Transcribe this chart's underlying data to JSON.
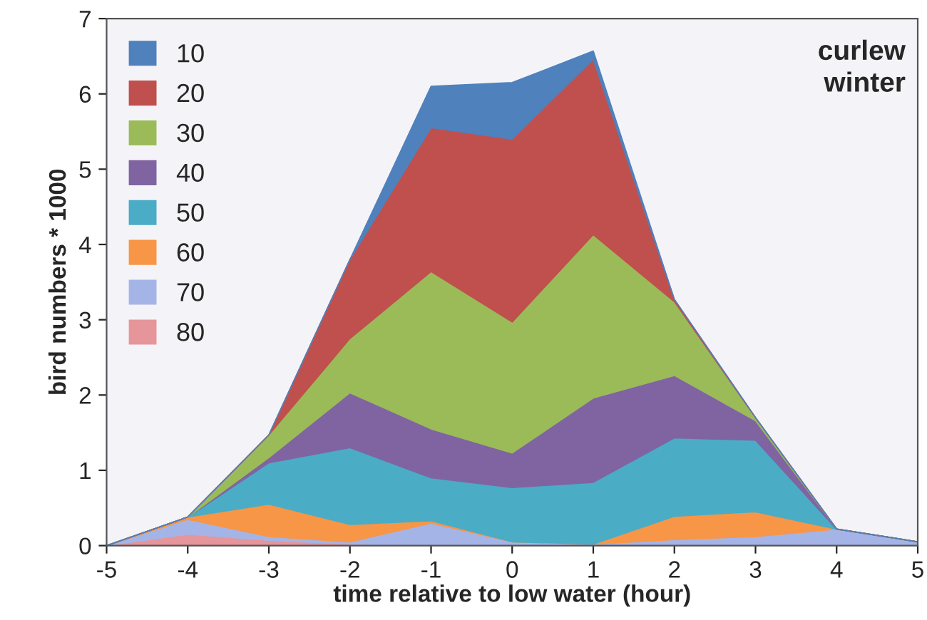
{
  "chart_data": {
    "type": "area",
    "stacked": true,
    "xlabel": "time relative to low water (hour)",
    "ylabel": "bird numbers * 1000",
    "x": [
      -5,
      -4,
      -3,
      -2,
      -1,
      0,
      1,
      2,
      3,
      4,
      5
    ],
    "series": [
      {
        "name": "80",
        "color": "#e6959a",
        "values": [
          0,
          0.15,
          0.07,
          0.02,
          0,
          0,
          0,
          0,
          0,
          0,
          0
        ]
      },
      {
        "name": "70",
        "color": "#a5b4e6",
        "values": [
          0,
          0.2,
          0.05,
          0.03,
          0.3,
          0.05,
          0.02,
          0.08,
          0.12,
          0.22,
          0.05
        ]
      },
      {
        "name": "60",
        "color": "#f79646",
        "values": [
          0,
          0.03,
          0.43,
          0.23,
          0.03,
          0,
          0,
          0.31,
          0.33,
          0,
          0
        ]
      },
      {
        "name": "50",
        "color": "#4bacc6",
        "values": [
          0,
          0,
          0.55,
          1.02,
          0.57,
          0.72,
          0.82,
          1.04,
          0.95,
          0,
          0
        ]
      },
      {
        "name": "40",
        "color": "#8064a2",
        "values": [
          0,
          0,
          0.07,
          0.73,
          0.65,
          0.46,
          1.12,
          0.83,
          0.26,
          0,
          0
        ]
      },
      {
        "name": "30",
        "color": "#9bbb59",
        "values": [
          0,
          0,
          0.3,
          0.72,
          2.09,
          1.74,
          2.17,
          0.98,
          0.04,
          0,
          0
        ]
      },
      {
        "name": "20",
        "color": "#c0504d",
        "values": [
          0,
          0,
          0,
          1.05,
          1.91,
          2.43,
          2.33,
          0.03,
          0,
          0,
          0
        ]
      },
      {
        "name": "10",
        "color": "#4f81bd",
        "values": [
          0,
          0,
          0,
          0,
          0.55,
          0.75,
          0.11,
          0,
          0,
          0,
          0
        ]
      }
    ],
    "xlim": [
      -5,
      5
    ],
    "xticks": [
      -5,
      -4,
      -3,
      -2,
      -1,
      0,
      1,
      2,
      3,
      4,
      5
    ],
    "ylim": [
      0,
      7
    ],
    "yticks": [
      0,
      1,
      2,
      3,
      4,
      5,
      6,
      7
    ],
    "grid": false,
    "legend": "top left",
    "annotations": [
      "curlew\nwinter"
    ]
  }
}
